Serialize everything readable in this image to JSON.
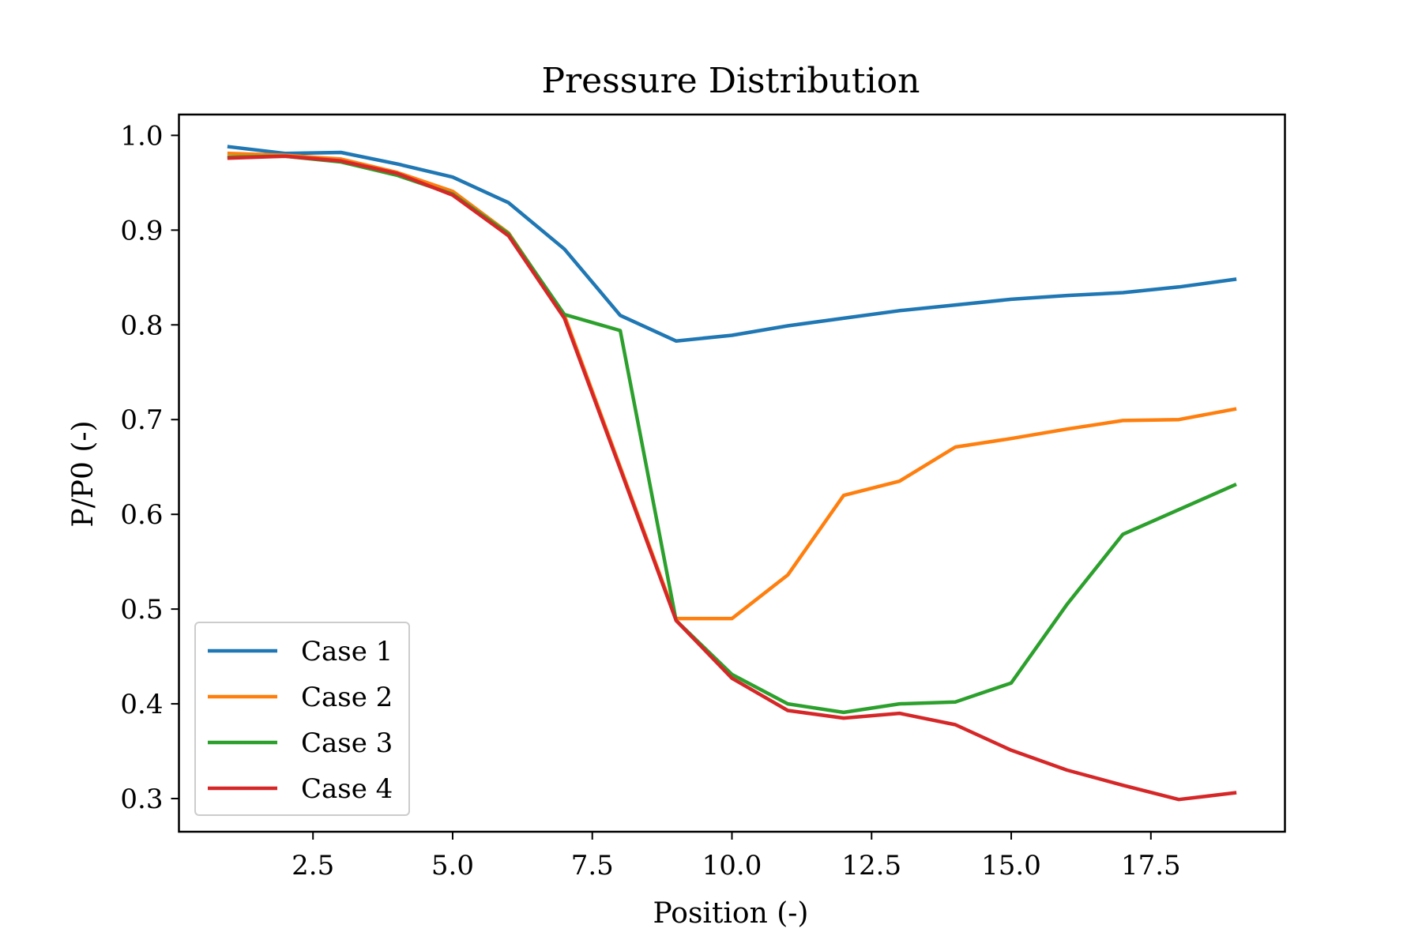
{
  "chart_data": {
    "type": "line",
    "title": "Pressure Distribution",
    "xlabel": "Position (-)",
    "ylabel": "P/P0 (-)",
    "xlim": [
      0.1,
      19.9
    ],
    "ylim": [
      0.265,
      1.022
    ],
    "xticks": [
      2.5,
      5.0,
      7.5,
      10.0,
      12.5,
      15.0,
      17.5
    ],
    "xtick_labels": [
      "2.5",
      "5.0",
      "7.5",
      "10.0",
      "12.5",
      "15.0",
      "17.5"
    ],
    "yticks": [
      0.3,
      0.4,
      0.5,
      0.6,
      0.7,
      0.8,
      0.9,
      1.0
    ],
    "ytick_labels": [
      "0.3",
      "0.4",
      "0.5",
      "0.6",
      "0.7",
      "0.8",
      "0.9",
      "1.0"
    ],
    "grid": false,
    "legend_position": "lower-left",
    "x": [
      1,
      2,
      3,
      4,
      5,
      6,
      7,
      8,
      9,
      10,
      11,
      12,
      13,
      14,
      15,
      16,
      17,
      18,
      19
    ],
    "series": [
      {
        "name": "Case 1",
        "color": "#1f77b4",
        "values": [
          0.988,
          0.981,
          0.982,
          0.97,
          0.956,
          0.929,
          0.88,
          0.81,
          0.783,
          0.789,
          0.799,
          0.807,
          0.815,
          0.821,
          0.827,
          0.831,
          0.834,
          0.84,
          0.848
        ]
      },
      {
        "name": "Case 2",
        "color": "#ff7f0e",
        "values": [
          0.981,
          0.979,
          0.975,
          0.961,
          0.941,
          0.897,
          0.81,
          0.65,
          0.49,
          0.49,
          0.536,
          0.62,
          0.635,
          0.671,
          0.68,
          0.69,
          0.699,
          0.7,
          0.711
        ]
      },
      {
        "name": "Case 3",
        "color": "#2ca02c",
        "values": [
          0.977,
          0.978,
          0.972,
          0.958,
          0.938,
          0.896,
          0.811,
          0.794,
          0.488,
          0.431,
          0.4,
          0.391,
          0.4,
          0.402,
          0.422,
          0.505,
          0.579,
          0.605,
          0.631
        ]
      },
      {
        "name": "Case 4",
        "color": "#d62728",
        "values": [
          0.976,
          0.978,
          0.973,
          0.96,
          0.937,
          0.894,
          0.807,
          0.648,
          0.488,
          0.427,
          0.393,
          0.385,
          0.39,
          0.378,
          0.351,
          0.33,
          0.314,
          0.299,
          0.306
        ]
      }
    ]
  }
}
